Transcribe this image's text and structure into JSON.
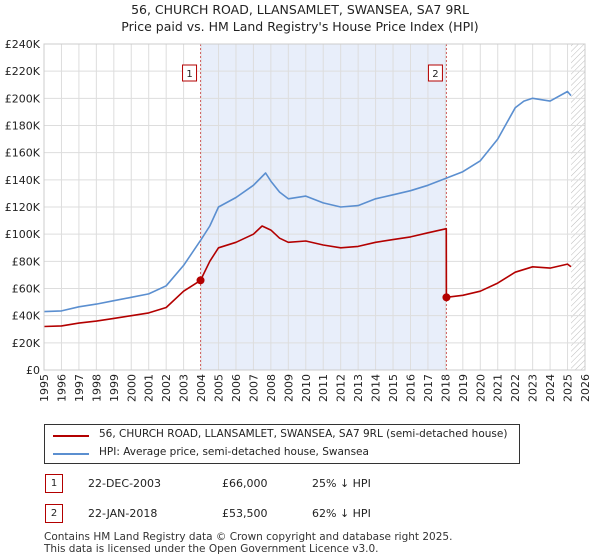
{
  "header": {
    "title": "56, CHURCH ROAD, LLANSAMLET, SWANSEA, SA7 9RL",
    "subtitle": "Price paid vs. HM Land Registry's House Price Index (HPI)"
  },
  "chart_data": {
    "type": "line",
    "xlim": [
      1995,
      2026
    ],
    "ylim": [
      0,
      240000
    ],
    "x_ticks": [
      "1995",
      "1996",
      "1997",
      "1998",
      "1999",
      "2000",
      "2001",
      "2002",
      "2003",
      "2004",
      "2005",
      "2006",
      "2007",
      "2008",
      "2009",
      "2010",
      "2011",
      "2012",
      "2013",
      "2014",
      "2015",
      "2016",
      "2017",
      "2018",
      "2019",
      "2020",
      "2021",
      "2022",
      "2023",
      "2024",
      "2025",
      "2026"
    ],
    "y_ticks": [
      {
        "value": 0,
        "label": "£0"
      },
      {
        "value": 20000,
        "label": "£20K"
      },
      {
        "value": 40000,
        "label": "£40K"
      },
      {
        "value": 60000,
        "label": "£60K"
      },
      {
        "value": 80000,
        "label": "£80K"
      },
      {
        "value": 100000,
        "label": "£100K"
      },
      {
        "value": 120000,
        "label": "£120K"
      },
      {
        "value": 140000,
        "label": "£140K"
      },
      {
        "value": 160000,
        "label": "£160K"
      },
      {
        "value": 180000,
        "label": "£180K"
      },
      {
        "value": 200000,
        "label": "£200K"
      },
      {
        "value": 220000,
        "label": "£220K"
      },
      {
        "value": 240000,
        "label": "£240K"
      }
    ],
    "grid": true,
    "shaded_range": [
      2003.97,
      2018.06
    ],
    "future_hatch_from": 2025.2,
    "series": [
      {
        "name": "56, CHURCH ROAD, LLANSAMLET, SWANSEA, SA7 9RL (semi-detached house)",
        "color": "#b30000",
        "points": [
          [
            1995,
            32000
          ],
          [
            1996,
            32500
          ],
          [
            1997,
            34500
          ],
          [
            1998,
            36000
          ],
          [
            1999,
            38000
          ],
          [
            2000,
            40000
          ],
          [
            2001,
            42000
          ],
          [
            2002,
            46000
          ],
          [
            2003,
            58000
          ],
          [
            2003.97,
            66000
          ],
          [
            2004.5,
            80000
          ],
          [
            2005,
            90000
          ],
          [
            2006,
            94000
          ],
          [
            2007,
            100000
          ],
          [
            2007.5,
            106000
          ],
          [
            2008,
            103000
          ],
          [
            2008.5,
            97000
          ],
          [
            2009,
            94000
          ],
          [
            2010,
            95000
          ],
          [
            2011,
            92000
          ],
          [
            2012,
            90000
          ],
          [
            2013,
            91000
          ],
          [
            2014,
            94000
          ],
          [
            2015,
            96000
          ],
          [
            2016,
            98000
          ],
          [
            2017,
            101000
          ],
          [
            2018.05,
            104000
          ],
          [
            2018.06,
            53500
          ],
          [
            2019,
            55000
          ],
          [
            2020,
            58000
          ],
          [
            2021,
            64000
          ],
          [
            2022,
            72000
          ],
          [
            2023,
            76000
          ],
          [
            2024,
            75000
          ],
          [
            2025,
            78000
          ],
          [
            2025.2,
            76000
          ]
        ]
      },
      {
        "name": "HPI: Average price, semi-detached house, Swansea",
        "color": "#5b8fd0",
        "points": [
          [
            1995,
            43000
          ],
          [
            1996,
            43500
          ],
          [
            1997,
            46500
          ],
          [
            1998,
            48500
          ],
          [
            1999,
            51000
          ],
          [
            2000,
            53500
          ],
          [
            2001,
            56000
          ],
          [
            2002,
            62000
          ],
          [
            2003,
            77000
          ],
          [
            2004,
            96000
          ],
          [
            2004.5,
            106000
          ],
          [
            2005,
            120000
          ],
          [
            2006,
            127000
          ],
          [
            2007,
            136000
          ],
          [
            2007.7,
            145000
          ],
          [
            2008,
            139000
          ],
          [
            2008.5,
            131000
          ],
          [
            2009,
            126000
          ],
          [
            2010,
            128000
          ],
          [
            2011,
            123000
          ],
          [
            2012,
            120000
          ],
          [
            2013,
            121000
          ],
          [
            2014,
            126000
          ],
          [
            2015,
            129000
          ],
          [
            2016,
            132000
          ],
          [
            2017,
            136000
          ],
          [
            2018,
            141000
          ],
          [
            2019,
            146000
          ],
          [
            2020,
            154000
          ],
          [
            2021,
            170000
          ],
          [
            2022,
            193000
          ],
          [
            2022.5,
            198000
          ],
          [
            2023,
            200000
          ],
          [
            2024,
            198000
          ],
          [
            2025,
            205000
          ],
          [
            2025.2,
            202000
          ]
        ]
      }
    ],
    "sale_markers": [
      {
        "label": "1",
        "x": 2003.97,
        "y": 66000
      },
      {
        "label": "2",
        "x": 2018.06,
        "y": 53500
      }
    ]
  },
  "legend": {
    "items": [
      {
        "label": "56, CHURCH ROAD, LLANSAMLET, SWANSEA, SA7 9RL (semi-detached house)",
        "color": "#b30000"
      },
      {
        "label": "HPI: Average price, semi-detached house, Swansea",
        "color": "#5b8fd0"
      }
    ]
  },
  "sales": [
    {
      "num": "1",
      "date": "22-DEC-2003",
      "price": "£66,000",
      "hpi": "25% ↓ HPI"
    },
    {
      "num": "2",
      "date": "22-JAN-2018",
      "price": "£53,500",
      "hpi": "62% ↓ HPI"
    }
  ],
  "footer": {
    "line1": "Contains HM Land Registry data © Crown copyright and database right 2025.",
    "line2": "This data is licensed under the Open Government Licence v3.0."
  }
}
